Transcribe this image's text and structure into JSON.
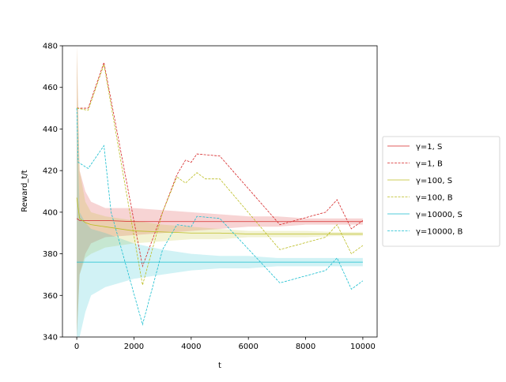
{
  "chart_data": {
    "type": "line",
    "xlabel": "t",
    "ylabel": "Reward_t/t",
    "xlim": [
      -500,
      10500
    ],
    "ylim": [
      340,
      480
    ],
    "xticks": [
      0,
      2000,
      4000,
      6000,
      8000,
      10000
    ],
    "yticks": [
      340,
      360,
      380,
      400,
      420,
      440,
      460,
      480
    ],
    "grid": false,
    "legend": "right",
    "series": [
      {
        "name": "γ=1, S",
        "color": "#d62728",
        "linestyle": "solid",
        "x": [
          0,
          100,
          300,
          500,
          1000,
          2000,
          3000,
          4000,
          5000,
          6000,
          7000,
          8000,
          9000,
          10000
        ],
        "values": [
          397,
          396,
          396,
          396,
          396,
          395.5,
          395.5,
          395.5,
          395.5,
          395.5,
          395.5,
          395.5,
          395.5,
          395.5
        ],
        "lower": [
          340,
          370,
          380,
          385,
          388,
          389,
          390,
          391,
          392,
          393,
          393,
          394,
          394,
          394
        ],
        "upper": [
          480,
          420,
          410,
          405,
          402,
          402,
          401,
          400,
          399,
          398,
          398,
          397,
          397,
          397
        ]
      },
      {
        "name": "γ=1, B",
        "color": "#d62728",
        "linestyle": "dashed",
        "x": [
          0,
          400,
          950,
          2300,
          3000,
          3500,
          3800,
          4000,
          4200,
          5000,
          7100,
          8700,
          9100,
          9600,
          10000
        ],
        "values": [
          450,
          450,
          472,
          374,
          400,
          418,
          425,
          424,
          428,
          427,
          394,
          400,
          406,
          392,
          396
        ]
      },
      {
        "name": "γ=100, S",
        "color": "#bcbd22",
        "linestyle": "solid",
        "x": [
          0,
          100,
          300,
          500,
          1000,
          2000,
          3000,
          4000,
          5000,
          6000,
          7000,
          8000,
          9000,
          10000
        ],
        "values": [
          407,
          397,
          395,
          394,
          393,
          391,
          390.5,
          390,
          390,
          389.5,
          389.5,
          389.5,
          389.5,
          389.5
        ],
        "lower": [
          340,
          370,
          378,
          380,
          383,
          385,
          386,
          387,
          387,
          388,
          388,
          388,
          388.5,
          388.5
        ],
        "upper": [
          480,
          420,
          405,
          400,
          398,
          396,
          394,
          393,
          392,
          391,
          391,
          391,
          390.5,
          390.5
        ]
      },
      {
        "name": "γ=100, B",
        "color": "#bcbd22",
        "linestyle": "dashed",
        "x": [
          0,
          400,
          950,
          2300,
          3000,
          3500,
          3800,
          4200,
          4500,
          5000,
          7100,
          8700,
          9100,
          9600,
          10000
        ],
        "values": [
          450,
          449,
          471,
          365,
          400,
          417,
          414,
          419,
          416,
          416,
          382,
          388,
          394,
          380,
          384
        ]
      },
      {
        "name": "γ=10000, S",
        "color": "#17becf",
        "linestyle": "solid",
        "x": [
          0,
          100,
          300,
          500,
          1000,
          2000,
          3000,
          4000,
          5000,
          6000,
          7000,
          8000,
          9000,
          10000
        ],
        "values": [
          376,
          376,
          376,
          376,
          376,
          376,
          376,
          376,
          376,
          376,
          376,
          376,
          376,
          376
        ],
        "lower": [
          340,
          340,
          352,
          360,
          364,
          368,
          370,
          372,
          373,
          373,
          374,
          374,
          374,
          374
        ],
        "upper": [
          450,
          400,
          395,
          392,
          390,
          385,
          382,
          380,
          379,
          379,
          378,
          378,
          378,
          378
        ]
      },
      {
        "name": "γ=10000, B",
        "color": "#17becf",
        "linestyle": "dashed",
        "x": [
          0,
          50,
          400,
          950,
          1200,
          2300,
          3000,
          3500,
          4000,
          4200,
          5000,
          7100,
          8700,
          9100,
          9600,
          10000
        ],
        "values": [
          450,
          424,
          421,
          432,
          400,
          346,
          382,
          394,
          393,
          398,
          397,
          366,
          372,
          378,
          363,
          367
        ]
      }
    ]
  }
}
